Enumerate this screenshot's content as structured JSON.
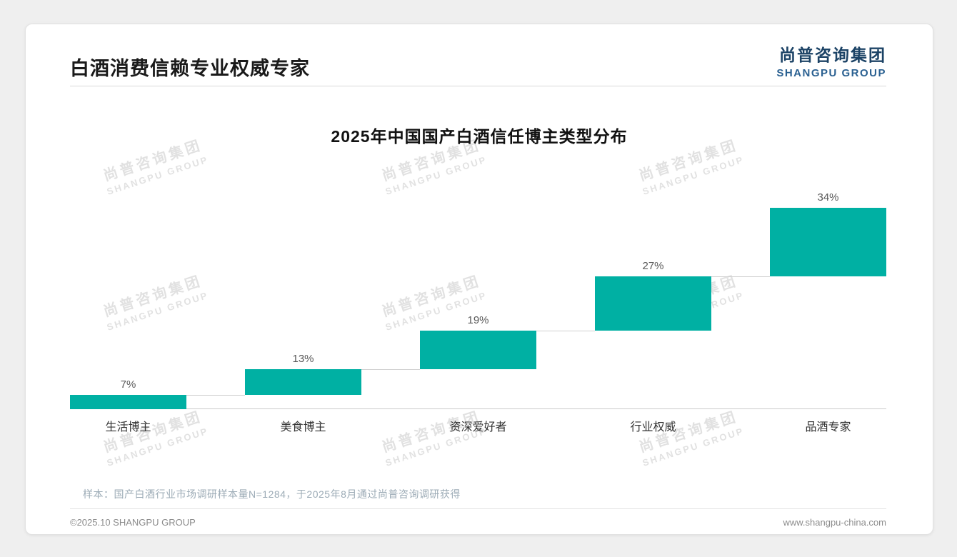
{
  "page": {
    "header": {
      "title": "白酒消费信赖专业权威专家"
    },
    "logo": {
      "cn": "尚普咨询集团",
      "en": "SHANGPU GROUP"
    },
    "watermark": {
      "cn": "尚普咨询集团",
      "en": "SHANGPU GROUP"
    },
    "note": "样本：国产白酒行业市场调研样本量N=1284，于2025年8月通过尚普咨询调研获得",
    "footer": {
      "left": "©2025.10 SHANGPU GROUP",
      "right": "www.shangpu-china.com"
    }
  },
  "colors": {
    "bar_teal": "#00B0A3",
    "logo_navy": "#1c4366",
    "logo_blue": "#2a6091",
    "note_gray_blue": "#9cabb6"
  },
  "chart_data": {
    "type": "bar",
    "subtype": "waterfall",
    "title": "2025年中国国产白酒信任博主类型分布",
    "categories": [
      "生活博主",
      "美食博主",
      "资深爱好者",
      "行业权威",
      "品酒专家"
    ],
    "values": [
      7,
      13,
      19,
      27,
      34
    ],
    "value_labels": [
      "7%",
      "13%",
      "19%",
      "27%",
      "34%"
    ],
    "cumulative": [
      7,
      20,
      39,
      66,
      100
    ],
    "bar_color": "#00B0A3",
    "ylim": [
      0,
      100
    ],
    "grid": false,
    "legend": false,
    "xlabel": "",
    "ylabel": ""
  }
}
